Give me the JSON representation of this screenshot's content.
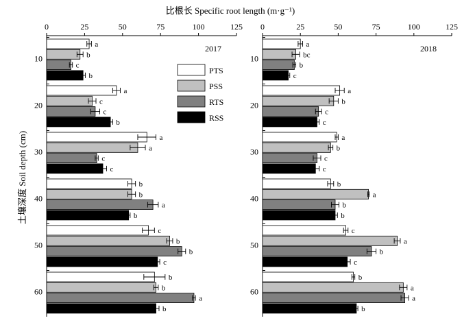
{
  "chart_data": {
    "type": "bar",
    "orientation": "horizontal",
    "top_title": "比根长 Specific root length (m·g⁻¹)",
    "ylabel": "土壤深度 Soil  depth (cm)",
    "xlim": [
      0,
      125
    ],
    "x_ticks": [
      "0",
      "25",
      "50",
      "75",
      "100",
      "125"
    ],
    "y_ticks": [
      "10",
      "20",
      "30",
      "40",
      "50",
      "60"
    ],
    "series": [
      {
        "name": "PTS",
        "color": "#ffffff"
      },
      {
        "name": "PSS",
        "color": "#c0c0c0"
      },
      {
        "name": "RTS",
        "color": "#808080"
      },
      {
        "name": "RSS",
        "color": "#000000"
      }
    ],
    "legend_position": "top-right of left panel",
    "panels": [
      {
        "title": "2017",
        "groups": [
          {
            "values": [
              28,
              22,
              16,
              24
            ],
            "errors": [
              1.5,
              2,
              1,
              1.5
            ],
            "labels": [
              "a",
              "b",
              "c",
              "b"
            ]
          },
          {
            "values": [
              46,
              30,
              32,
              42
            ],
            "errors": [
              2.5,
              2.5,
              3,
              1.5
            ],
            "labels": [
              "a",
              "c",
              "c",
              "b"
            ]
          },
          {
            "values": [
              66,
              60,
              33,
              37
            ],
            "errors": [
              6,
              5,
              1,
              2.5
            ],
            "labels": [
              "a",
              "a",
              "c",
              "c"
            ]
          },
          {
            "values": [
              56,
              56,
              70,
              54
            ],
            "errors": [
              2.5,
              2.5,
              3.5,
              1
            ],
            "labels": [
              "b",
              "b",
              "a",
              "b"
            ]
          },
          {
            "values": [
              67,
              81,
              89,
              73
            ],
            "errors": [
              4,
              2,
              2.5,
              1.5
            ],
            "labels": [
              "c",
              "b",
              "b",
              "c"
            ]
          },
          {
            "values": [
              71,
              72,
              97,
              72
            ],
            "errors": [
              7,
              1.5,
              1,
              2
            ],
            "labels": [
              "b",
              "b",
              "a",
              "b"
            ]
          }
        ]
      },
      {
        "title": "2018",
        "groups": [
          {
            "values": [
              25,
              22,
              21,
              17
            ],
            "errors": [
              1.5,
              2.5,
              1,
              1
            ],
            "labels": [
              "a",
              "bc",
              "b",
              "c"
            ]
          },
          {
            "values": [
              51,
              47,
              37,
              36
            ],
            "errors": [
              3,
              3,
              2,
              1.5
            ],
            "labels": [
              "a",
              "b",
              "c",
              "c"
            ]
          },
          {
            "values": [
              49,
              45,
              36,
              35
            ],
            "errors": [
              1,
              1.5,
              2.5,
              2.5
            ],
            "labels": [
              "a",
              "b",
              "c",
              "c"
            ]
          },
          {
            "values": [
              45,
              70,
              48,
              48
            ],
            "errors": [
              2,
              0.5,
              2.5,
              1.5
            ],
            "labels": [
              "b",
              "a",
              "b",
              "b"
            ]
          },
          {
            "values": [
              55,
              89,
              72,
              56
            ],
            "errors": [
              1.5,
              2,
              3,
              2
            ],
            "labels": [
              "c",
              "a",
              "b",
              "c"
            ]
          },
          {
            "values": [
              60,
              93,
              94,
              62
            ],
            "errors": [
              1,
              2.5,
              2.5,
              1
            ],
            "labels": [
              "b",
              "a",
              "a",
              "b"
            ]
          }
        ]
      }
    ]
  }
}
